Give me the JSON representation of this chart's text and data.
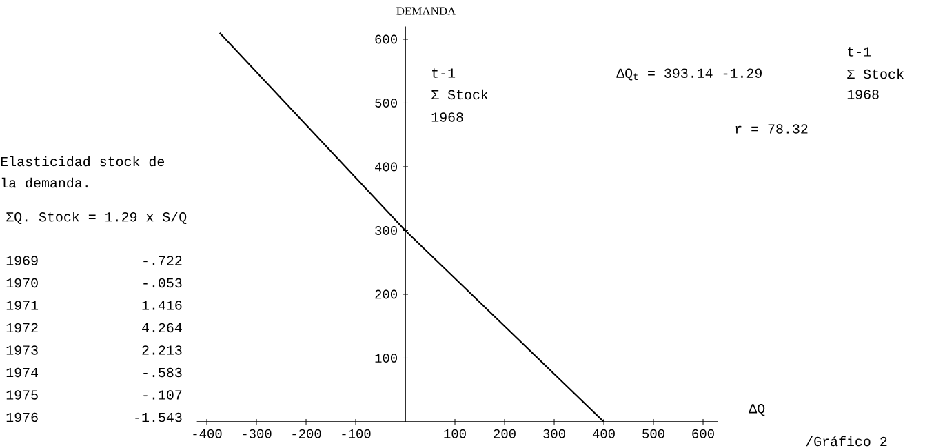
{
  "chart_data": {
    "type": "line",
    "xlabel": "ΔQ",
    "ylabel": "DEMANDA",
    "x": [
      -374,
      0,
      400
    ],
    "series": [
      {
        "color": "#000000",
        "values": [
          610,
          300,
          0
        ]
      }
    ],
    "xlim": [
      -420,
      630
    ],
    "ylim": [
      0,
      620
    ],
    "xticks": [
      -400,
      -300,
      -200,
      -100,
      100,
      200,
      300,
      400,
      500,
      600
    ],
    "yticks": [
      100,
      200,
      300,
      400,
      500,
      600
    ],
    "marker": "none",
    "line_style": "solid",
    "annotations": [
      "t-1",
      "Σ Stock",
      "1968",
      "ΔQ$_{t}$ = 393.14 -1.29",
      "t-1",
      "Σ Stock",
      "1968",
      "r = 78.32",
      "Elasticidad stock de",
      "la demanda.",
      "ΣQ. Stock = 1.29 x S/Q",
      "1969",
      "-.722",
      "1970",
      "-.053",
      "1971",
      "1.416",
      "1972",
      "4.264",
      "1973",
      "2.213",
      "1974",
      "-.583",
      "1975",
      "-.107",
      "1976",
      "-1.543",
      "/Gráfico 2"
    ]
  }
}
